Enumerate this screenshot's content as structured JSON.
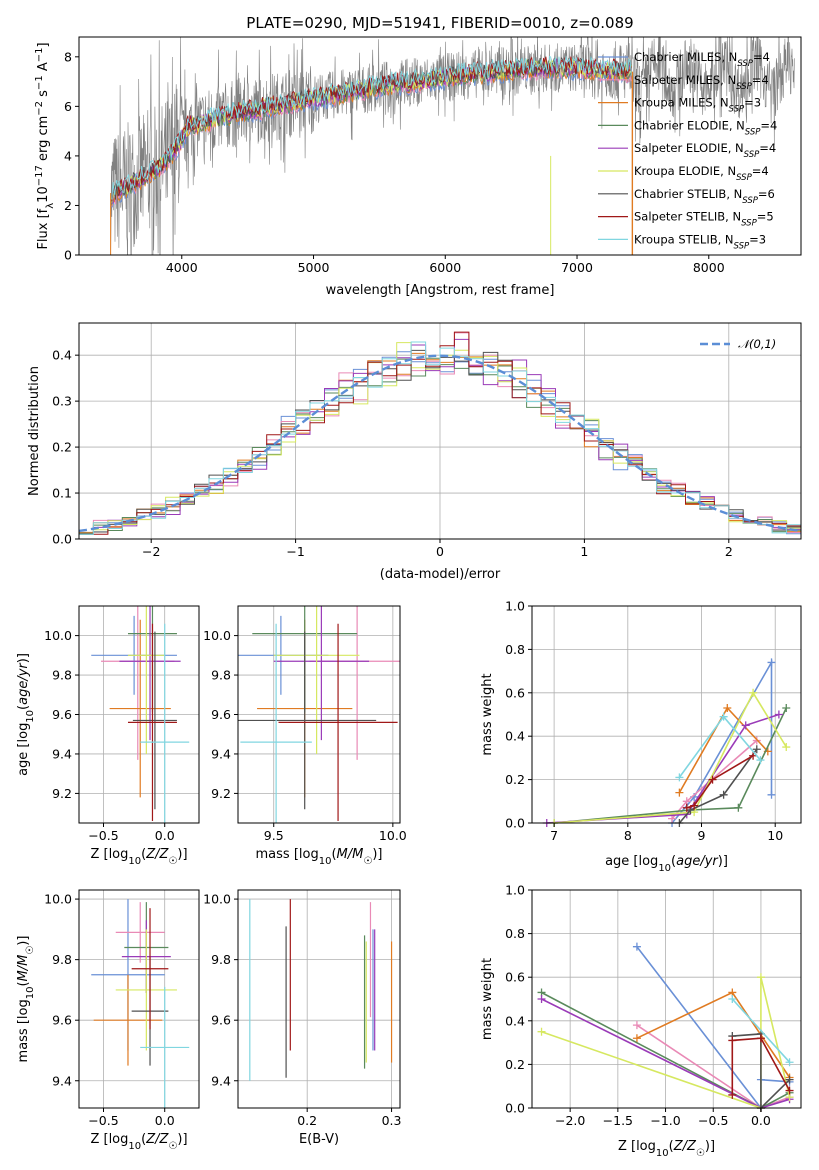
{
  "title": "PLATE=0290, MJD=51941, FIBERID=0010, z=0.089",
  "colors": {
    "Chabrier MILES": "#6a90d6",
    "Salpeter MILES": "#e98ab6",
    "Kroupa MILES": "#e07b22",
    "Chabrier ELODIE": "#5a8a5c",
    "Salpeter ELODIE": "#9a3bb8",
    "Kroupa ELODIE": "#d6e860",
    "Chabrier STELIB": "#505050",
    "Salpeter STELIB": "#a01818",
    "Kroupa STELIB": "#80d6e0",
    "data": "#808080",
    "normal": "#5b8ed6"
  },
  "chart_data": [
    {
      "id": "spectrum",
      "type": "line",
      "title": "PLATE=0290, MJD=51941, FIBERID=0010, z=0.089",
      "xlabel": "wavelength [Angstrom, rest frame]",
      "ylabel": "Flux [f_λ 10^-17 erg cm^-2 s^-1 A^-1]",
      "xlim": [
        3220,
        8700
      ],
      "ylim": [
        0,
        8.8
      ],
      "xticks": [
        4000,
        5000,
        6000,
        7000,
        8000
      ],
      "yticks": [
        0,
        2,
        4,
        6,
        8
      ],
      "grid": false,
      "legend_position": "top-right",
      "data_x_range": [
        3460,
        8650
      ],
      "continuum": {
        "x": [
          3460,
          3600,
          3700,
          3850,
          3950,
          4050,
          4200,
          4400,
          4600,
          4800,
          5000,
          5200,
          5400,
          5600,
          5800,
          6000,
          6200,
          6400,
          6600,
          6800,
          7000,
          7200,
          7400
        ],
        "y": [
          2.4,
          2.8,
          3.1,
          3.6,
          4.2,
          5.2,
          5.4,
          5.7,
          5.9,
          6.1,
          6.3,
          6.5,
          6.7,
          6.9,
          7.0,
          7.15,
          7.3,
          7.4,
          7.5,
          7.55,
          7.55,
          7.45,
          7.4
        ]
      },
      "series": [
        {
          "name": "Chabrier MILES",
          "nssp": "4"
        },
        {
          "name": "Salpeter MILES",
          "nssp": "4"
        },
        {
          "name": "Kroupa MILES",
          "nssp": "3"
        },
        {
          "name": "Chabrier ELODIE",
          "nssp": "4"
        },
        {
          "name": "Salpeter ELODIE",
          "nssp": "4"
        },
        {
          "name": "Kroupa ELODIE",
          "nssp": "4"
        },
        {
          "name": "Chabrier STELIB",
          "nssp": "6"
        },
        {
          "name": "Salpeter STELIB",
          "nssp": "5"
        },
        {
          "name": "Kroupa STELIB",
          "nssp": "3"
        }
      ]
    },
    {
      "id": "residuals",
      "type": "line",
      "xlabel": "(data-model)/error",
      "ylabel": "Normed distribution",
      "xlim": [
        -2.5,
        2.5
      ],
      "ylim": [
        0,
        0.47
      ],
      "xticks": [
        -2,
        -1,
        0,
        1,
        2
      ],
      "yticks": [
        0.0,
        0.1,
        0.2,
        0.3,
        0.4
      ],
      "grid": true,
      "legend": "𝒩(0,1)",
      "legend_position": "top-right",
      "bin_width": 0.1
    },
    {
      "id": "age-vs-Z",
      "type": "scatter",
      "xlabel": "Z [log10(Z/Z☉)]",
      "ylabel": "age  [log10(age/yr)]",
      "xlim": [
        -0.7,
        0.28
      ],
      "ylim": [
        9.05,
        10.15
      ],
      "xticks": [
        -0.5,
        0.0
      ],
      "yticks": [
        9.2,
        9.4,
        9.6,
        9.8,
        10.0
      ],
      "grid": true,
      "points": [
        {
          "series": "Chabrier MILES",
          "x": -0.25,
          "y": 9.9,
          "xerr": 0.35,
          "yerr": 0.2
        },
        {
          "series": "Salpeter MILES",
          "x": -0.22,
          "y": 9.87,
          "xerr": 0.3,
          "yerr": 0.5
        },
        {
          "series": "Kroupa MILES",
          "x": -0.2,
          "y": 9.63,
          "xerr": 0.25,
          "yerr": 0.45
        },
        {
          "series": "Chabrier ELODIE",
          "x": -0.1,
          "y": 10.01,
          "xerr": 0.2,
          "yerr": 0.4
        },
        {
          "series": "Salpeter ELODIE",
          "x": -0.12,
          "y": 9.87,
          "xerr": 0.25,
          "yerr": 0.4
        },
        {
          "series": "Kroupa ELODIE",
          "x": -0.15,
          "y": 9.9,
          "xerr": 0.15,
          "yerr": 0.5
        },
        {
          "series": "Chabrier STELIB",
          "x": -0.08,
          "y": 9.57,
          "xerr": 0.18,
          "yerr": 0.45
        },
        {
          "series": "Salpeter STELIB",
          "x": -0.1,
          "y": 9.56,
          "xerr": 0.2,
          "yerr": 0.5
        },
        {
          "series": "Kroupa STELIB",
          "x": 0.0,
          "y": 9.46,
          "xerr": 0.2,
          "yerr": 0.6
        }
      ]
    },
    {
      "id": "age-vs-mass",
      "type": "scatter",
      "xlabel": "mass [log10(M/M☉)]",
      "ylabel": "",
      "xlim": [
        9.35,
        10.03
      ],
      "ylim": [
        9.05,
        10.15
      ],
      "xticks": [
        9.5,
        10.0
      ],
      "yticks": [
        9.2,
        9.4,
        9.6,
        9.8,
        10.0
      ],
      "grid": true,
      "points": [
        {
          "series": "Chabrier MILES",
          "x": 9.53,
          "y": 9.9,
          "xerr": 0.2,
          "yerr": 0.2
        },
        {
          "series": "Salpeter MILES",
          "x": 9.85,
          "y": 9.87,
          "xerr": 0.2,
          "yerr": 0.5
        },
        {
          "series": "Kroupa MILES",
          "x": 9.63,
          "y": 9.63,
          "xerr": 0.2,
          "yerr": 0.45
        },
        {
          "series": "Chabrier ELODIE",
          "x": 9.63,
          "y": 10.01,
          "xerr": 0.22,
          "yerr": 0.4
        },
        {
          "series": "Salpeter ELODIE",
          "x": 9.7,
          "y": 9.87,
          "xerr": 0.2,
          "yerr": 0.4
        },
        {
          "series": "Kroupa ELODIE",
          "x": 9.68,
          "y": 9.9,
          "xerr": 0.18,
          "yerr": 0.5
        },
        {
          "series": "Chabrier STELIB",
          "x": 9.63,
          "y": 9.57,
          "xerr": 0.3,
          "yerr": 0.45
        },
        {
          "series": "Salpeter STELIB",
          "x": 9.77,
          "y": 9.56,
          "xerr": 0.25,
          "yerr": 0.5
        },
        {
          "series": "Kroupa STELIB",
          "x": 9.51,
          "y": 9.46,
          "xerr": 0.15,
          "yerr": 0.6
        }
      ]
    },
    {
      "id": "mass-weight-vs-age",
      "type": "line",
      "xlabel": "age  [log10(age/yr)]",
      "ylabel": "mass weight",
      "xlim": [
        6.7,
        10.35
      ],
      "ylim": [
        0,
        1.0
      ],
      "xticks": [
        7,
        8,
        9,
        10
      ],
      "yticks": [
        0.0,
        0.2,
        0.4,
        0.6,
        0.8,
        1.0
      ],
      "grid": true,
      "series": [
        {
          "name": "Chabrier MILES",
          "x": [
            8.6,
            8.9,
            9.95,
            9.95
          ],
          "y": [
            0.0,
            0.12,
            0.74,
            0.13
          ]
        },
        {
          "name": "Salpeter MILES",
          "x": [
            8.6,
            8.8,
            9.75
          ],
          "y": [
            0.02,
            0.1,
            0.38
          ]
        },
        {
          "name": "Kroupa MILES",
          "x": [
            8.7,
            9.35,
            9.9
          ],
          "y": [
            0.14,
            0.53,
            0.33
          ]
        },
        {
          "name": "Chabrier ELODIE",
          "x": [
            7.0,
            8.85,
            9.5,
            10.15
          ],
          "y": [
            0.0,
            0.06,
            0.07,
            0.53
          ]
        },
        {
          "name": "Salpeter ELODIE",
          "x": [
            6.9,
            8.8,
            9.6,
            10.05
          ],
          "y": [
            0.0,
            0.04,
            0.45,
            0.5
          ]
        },
        {
          "name": "Kroupa ELODIE",
          "x": [
            7.0,
            8.9,
            9.7,
            10.15
          ],
          "y": [
            0.0,
            0.05,
            0.6,
            0.35
          ]
        },
        {
          "name": "Chabrier STELIB",
          "x": [
            8.7,
            8.85,
            9.3,
            9.75
          ],
          "y": [
            0.0,
            0.06,
            0.13,
            0.34
          ]
        },
        {
          "name": "Salpeter STELIB",
          "x": [
            8.8,
            8.9,
            9.15,
            9.7
          ],
          "y": [
            0.07,
            0.08,
            0.2,
            0.31
          ]
        },
        {
          "name": "Kroupa STELIB",
          "x": [
            8.7,
            9.3,
            9.8
          ],
          "y": [
            0.21,
            0.49,
            0.29
          ]
        }
      ]
    },
    {
      "id": "mass-vs-Z",
      "type": "scatter",
      "xlabel": "Z [log10(Z/Z☉)]",
      "ylabel": "mass [log10(M/M☉)]",
      "xlim": [
        -0.7,
        0.28
      ],
      "ylim": [
        9.31,
        10.03
      ],
      "xticks": [
        -0.5,
        0.0
      ],
      "yticks": [
        9.4,
        9.6,
        9.8,
        10.0
      ],
      "grid": true,
      "points": [
        {
          "series": "Chabrier MILES",
          "x": -0.3,
          "y": 9.75,
          "xerr": 0.3,
          "yerr": 0.25
        },
        {
          "series": "Salpeter MILES",
          "x": -0.2,
          "y": 9.89,
          "xerr": 0.2,
          "yerr": 0.1
        },
        {
          "series": "Kroupa MILES",
          "x": -0.3,
          "y": 9.6,
          "xerr": 0.28,
          "yerr": 0.15
        },
        {
          "series": "Chabrier ELODIE",
          "x": -0.15,
          "y": 9.84,
          "xerr": 0.18,
          "yerr": 0.15
        },
        {
          "series": "Salpeter ELODIE",
          "x": -0.15,
          "y": 9.81,
          "xerr": 0.2,
          "yerr": 0.12
        },
        {
          "series": "Kroupa ELODIE",
          "x": -0.15,
          "y": 9.7,
          "xerr": 0.25,
          "yerr": 0.2
        },
        {
          "series": "Chabrier STELIB",
          "x": -0.12,
          "y": 9.63,
          "xerr": 0.15,
          "yerr": 0.18
        },
        {
          "series": "Salpeter STELIB",
          "x": -0.12,
          "y": 9.77,
          "xerr": 0.15,
          "yerr": 0.2
        },
        {
          "series": "Kroupa STELIB",
          "x": 0.0,
          "y": 9.51,
          "xerr": 0.2,
          "yerr": 0.2
        }
      ]
    },
    {
      "id": "mass-vs-EBV",
      "type": "scatter",
      "xlabel": "E(B-V)",
      "ylabel": "",
      "xlim": [
        0.118,
        0.31
      ],
      "ylim": [
        9.31,
        10.03
      ],
      "xticks": [
        0.2,
        0.3
      ],
      "yticks": [
        9.4,
        9.6,
        9.8,
        10.0
      ],
      "grid": true,
      "points": [
        {
          "series": "Chabrier MILES",
          "x": 0.278,
          "y": 9.7,
          "xerr": 0,
          "yerr": 0.2
        },
        {
          "series": "Salpeter MILES",
          "x": 0.275,
          "y": 9.8,
          "xerr": 0,
          "yerr": 0.19
        },
        {
          "series": "Kroupa MILES",
          "x": 0.3,
          "y": 9.66,
          "xerr": 0,
          "yerr": 0.2
        },
        {
          "series": "Chabrier ELODIE",
          "x": 0.268,
          "y": 9.66,
          "xerr": 0,
          "yerr": 0.22
        },
        {
          "series": "Salpeter ELODIE",
          "x": 0.28,
          "y": 9.7,
          "xerr": 0,
          "yerr": 0.2
        },
        {
          "series": "Kroupa ELODIE",
          "x": 0.27,
          "y": 9.66,
          "xerr": 0,
          "yerr": 0.2
        },
        {
          "series": "Chabrier STELIB",
          "x": 0.175,
          "y": 9.66,
          "xerr": 0,
          "yerr": 0.25
        },
        {
          "series": "Salpeter STELIB",
          "x": 0.18,
          "y": 9.75,
          "xerr": 0,
          "yerr": 0.25
        },
        {
          "series": "Kroupa STELIB",
          "x": 0.132,
          "y": 9.7,
          "xerr": 0,
          "yerr": 0.3
        }
      ]
    },
    {
      "id": "mass-weight-vs-Z",
      "type": "line",
      "xlabel": "Z [log10(Z/Z☉)]",
      "ylabel": "mass weight",
      "xlim": [
        -2.4,
        0.42
      ],
      "ylim": [
        0,
        1.0
      ],
      "xticks": [
        -2.0,
        -1.5,
        -1.0,
        -0.5,
        0.0
      ],
      "yticks": [
        0.0,
        0.2,
        0.4,
        0.6,
        0.8,
        1.0
      ],
      "grid": true,
      "series": [
        {
          "name": "Chabrier MILES",
          "x": [
            -1.3,
            0.0,
            0.0,
            0.3
          ],
          "y": [
            0.74,
            0.0,
            0.13,
            0.12
          ]
        },
        {
          "name": "Salpeter MILES",
          "x": [
            -1.3,
            0.0,
            0.3
          ],
          "y": [
            0.38,
            0.0,
            0.05
          ]
        },
        {
          "name": "Kroupa MILES",
          "x": [
            -1.3,
            -0.3,
            0.3
          ],
          "y": [
            0.32,
            0.53,
            0.14
          ]
        },
        {
          "name": "Chabrier ELODIE",
          "x": [
            -2.3,
            0.0,
            0.3
          ],
          "y": [
            0.53,
            0.0,
            0.07
          ]
        },
        {
          "name": "Salpeter ELODIE",
          "x": [
            -2.3,
            0.0,
            0.3
          ],
          "y": [
            0.5,
            0.0,
            0.04
          ]
        },
        {
          "name": "Kroupa ELODIE",
          "x": [
            -2.3,
            0.0,
            0.0,
            0.3
          ],
          "y": [
            0.35,
            0.0,
            0.6,
            0.05
          ]
        },
        {
          "name": "Chabrier STELIB",
          "x": [
            -0.3,
            0.0,
            0.0,
            0.3
          ],
          "y": [
            0.33,
            0.34,
            0.0,
            0.13
          ]
        },
        {
          "name": "Salpeter STELIB",
          "x": [
            -0.3,
            -0.3,
            0.0,
            0.3
          ],
          "y": [
            0.06,
            0.31,
            0.32,
            0.08
          ]
        },
        {
          "name": "Kroupa STELIB",
          "x": [
            -0.3,
            0.3
          ],
          "y": [
            0.5,
            0.21
          ]
        }
      ]
    }
  ]
}
